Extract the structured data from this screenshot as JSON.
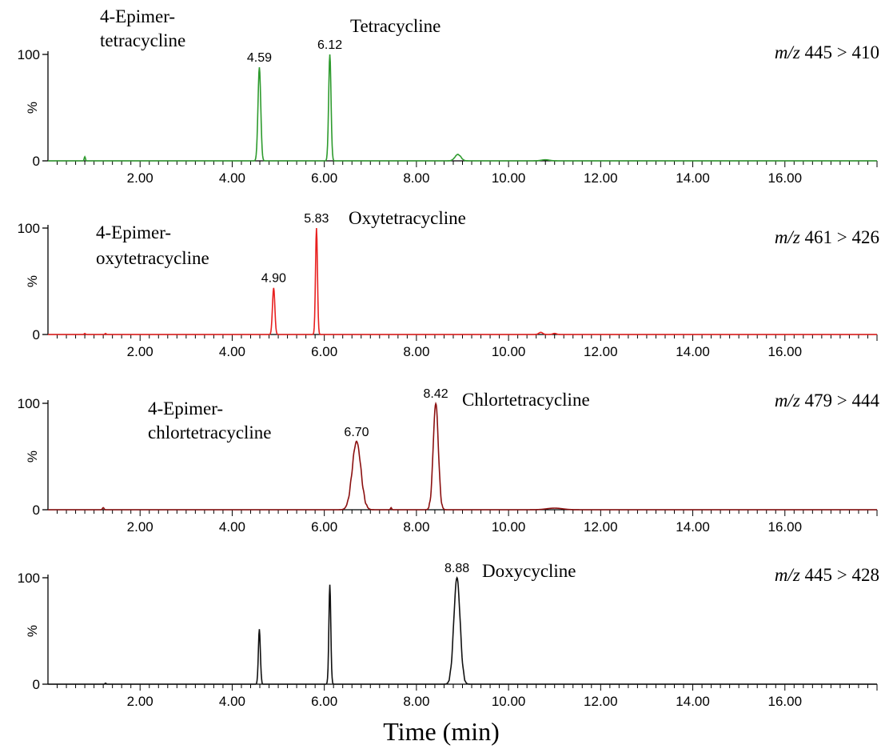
{
  "chart_data": {
    "type": "line",
    "xlabel": "Time (min)",
    "xlim": [
      0,
      18.0
    ],
    "x_tick_labels": [
      "2.00",
      "4.00",
      "6.00",
      "8.00",
      "10.00",
      "12.00",
      "14.00",
      "16.00"
    ],
    "y_tick_labels": [
      "0",
      "100"
    ],
    "ylabel": "%",
    "ylim": [
      0,
      100
    ],
    "panels": [
      {
        "color": "#2e9b2e",
        "transition_label_prefix": "m/z",
        "transition": "445 > 410",
        "annotations": [
          {
            "lines": [
              "4-Epimer-",
              "tetracycline"
            ]
          },
          {
            "lines": [
              "Tetracycline"
            ]
          }
        ],
        "peaks": [
          {
            "rt": 4.59,
            "height": 88,
            "width": 0.07,
            "label": "4.59"
          },
          {
            "rt": 6.12,
            "height": 100,
            "width": 0.06,
            "label": "6.12"
          },
          {
            "rt": 0.8,
            "height": 4,
            "width": 0.03
          },
          {
            "rt": 8.9,
            "height": 6,
            "width": 0.15
          },
          {
            "rt": 10.8,
            "height": 1,
            "width": 0.2
          }
        ]
      },
      {
        "color": "#e8201f",
        "transition_label_prefix": "m/z",
        "transition": "461 > 426",
        "annotations": [
          {
            "lines": [
              "4-Epimer-",
              "oxytetracycline"
            ]
          },
          {
            "lines": [
              "Oxytetracycline"
            ]
          }
        ],
        "peaks": [
          {
            "rt": 4.9,
            "height": 44,
            "width": 0.06,
            "label": "4.90"
          },
          {
            "rt": 5.83,
            "height": 100,
            "width": 0.05,
            "label": "5.83"
          },
          {
            "rt": 0.8,
            "height": 1,
            "width": 0.03
          },
          {
            "rt": 1.25,
            "height": 1,
            "width": 0.03
          },
          {
            "rt": 10.7,
            "height": 2,
            "width": 0.1
          },
          {
            "rt": 11.0,
            "height": 1,
            "width": 0.1
          }
        ]
      },
      {
        "color": "#8b1010",
        "transition_label_prefix": "m/z",
        "transition": "479 > 444",
        "annotations": [
          {
            "lines": [
              "4-Epimer-",
              "chlortetracycline"
            ]
          },
          {
            "lines": [
              "Chlortetracycline"
            ]
          }
        ],
        "peaks": [
          {
            "rt": 6.7,
            "height": 64,
            "width": 0.22,
            "label": "6.70"
          },
          {
            "rt": 8.42,
            "height": 100,
            "width": 0.13,
            "label": "8.42"
          },
          {
            "rt": 1.2,
            "height": 2,
            "width": 0.04
          },
          {
            "rt": 7.45,
            "height": 2,
            "width": 0.03
          },
          {
            "rt": 11.0,
            "height": 1.5,
            "width": 0.4
          }
        ]
      },
      {
        "color": "#111111",
        "transition_label_prefix": "m/z",
        "transition": "445 > 428",
        "annotations": [
          {
            "lines": [
              "Doxycycline"
            ]
          }
        ],
        "peaks": [
          {
            "rt": 4.59,
            "height": 52,
            "width": 0.05
          },
          {
            "rt": 6.12,
            "height": 92,
            "width": 0.05
          },
          {
            "rt": 8.88,
            "height": 100,
            "width": 0.16,
            "label": "8.88"
          },
          {
            "rt": 1.25,
            "height": 1,
            "width": 0.03
          }
        ]
      }
    ]
  }
}
